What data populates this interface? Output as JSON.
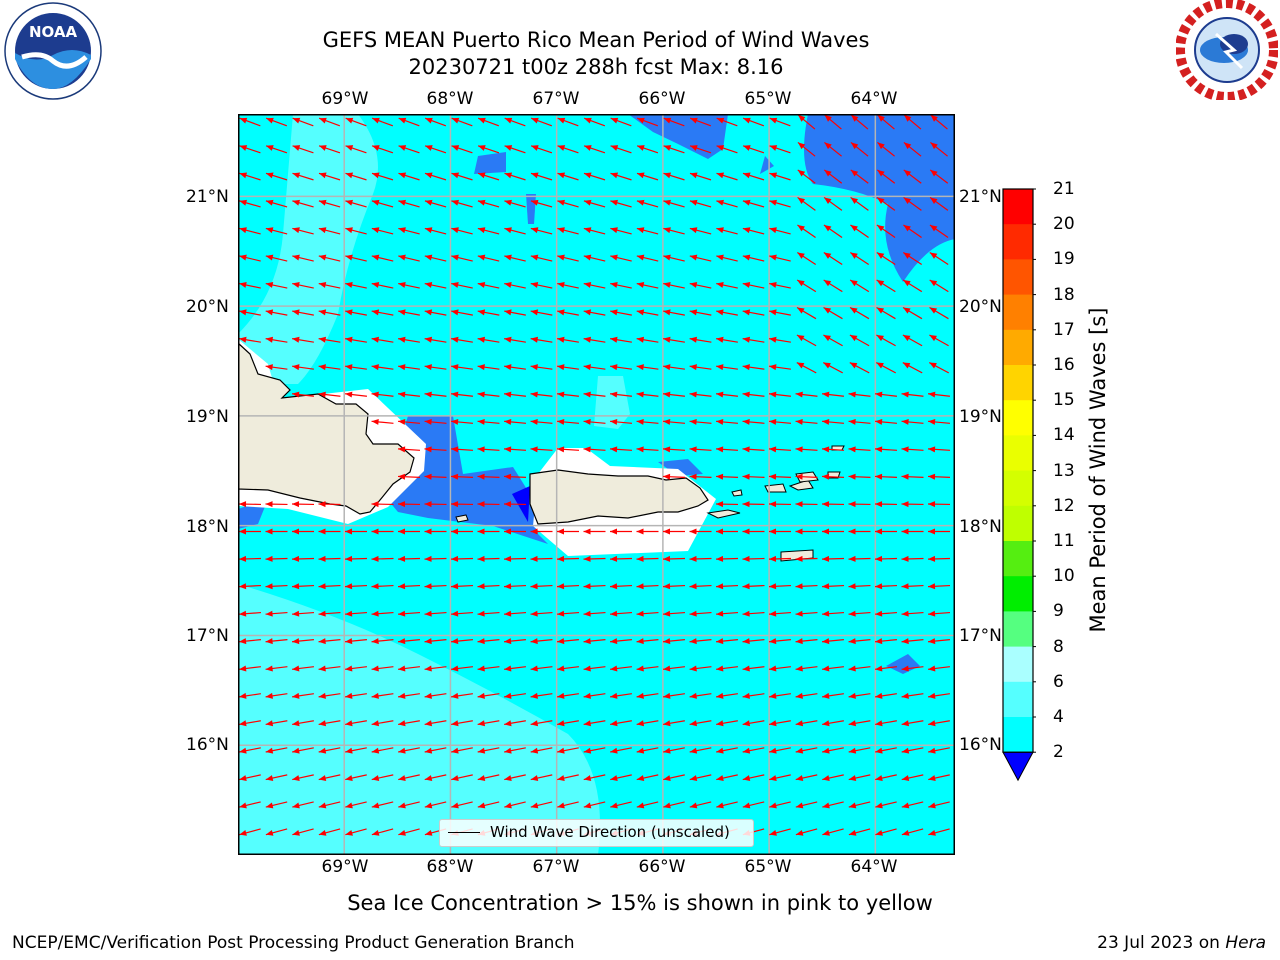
{
  "header": {
    "title_line1": "GEFS MEAN Puerto Rico Mean Period of Wind Waves",
    "title_line2": "20230721 t00z 288h fcst   Max: 8.16"
  },
  "logos": {
    "left": "noaa-logo",
    "left_text": "NOAA",
    "right": "nws-logo",
    "right_text": "NATIONAL WEATHER SERVICE"
  },
  "map": {
    "lon_ticks": [
      "69°W",
      "68°W",
      "67°W",
      "66°W",
      "65°W",
      "64°W"
    ],
    "lat_ticks": [
      "21°N",
      "20°N",
      "19°N",
      "18°N",
      "17°N",
      "16°N"
    ],
    "extent": {
      "lon_min": -70.0,
      "lon_max": -63.25,
      "lat_min": 15.0,
      "lat_max": 21.75
    },
    "field_colors": {
      "dark_blue": "#2a7af5",
      "cyan": "#00ffff",
      "light_cyan": "#55ffff",
      "land": "#efecdc",
      "arrows": "#ff0000",
      "grid": "#b5b5b5"
    },
    "wind_direction": "from east-northeast",
    "legend_label": "Wind Wave Direction (unscaled)"
  },
  "colorbar": {
    "title": "Mean Period of Wind Waves [s]",
    "labels": [
      "21",
      "20",
      "19",
      "18",
      "17",
      "16",
      "15",
      "14",
      "13",
      "12",
      "11",
      "10",
      "9",
      "8",
      "6",
      "4",
      "2"
    ],
    "colors": [
      "#ff0000",
      "#ff2a00",
      "#ff5500",
      "#ff8000",
      "#ffaa00",
      "#ffd400",
      "#ffff00",
      "#eaff00",
      "#d4ff00",
      "#bfff00",
      "#55ee11",
      "#00ee00",
      "#55ff80",
      "#aaffff",
      "#55ffff",
      "#00ffff",
      "#2a7af5"
    ],
    "extend_min_color": "#0000ff"
  },
  "footer": {
    "note": "Sea Ice Concentration > 15% is shown in pink to yellow",
    "credit_left": "NCEP/EMC/Verification Post Processing Product Generation Branch",
    "date_text": "23 Jul 2023 on ",
    "machine": "Hera"
  }
}
